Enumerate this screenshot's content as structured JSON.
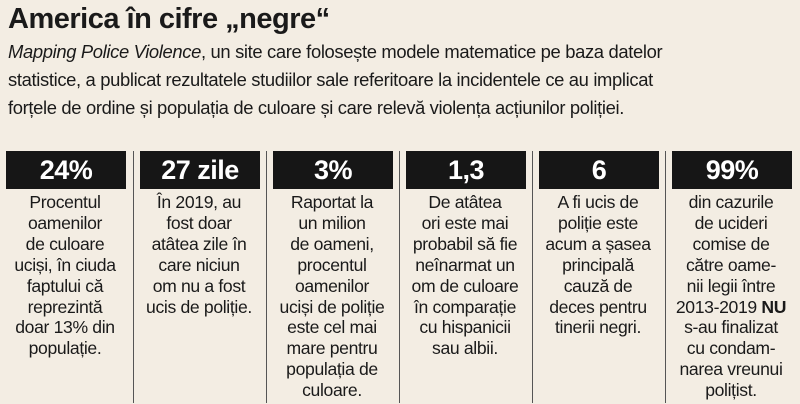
{
  "title": "America în cifre „negre“",
  "intro": {
    "source": "Mapping Police Violence",
    "line1_rest": ", un site care folosește modele matematice pe baza datelor",
    "line2": "statistice, a publicat rezultatele studiilor sale referitoare la incidentele ce au implicat",
    "line3": "forțele de ordine și populația de culoare și care relevă violența acțiunilor poliției."
  },
  "stats": [
    {
      "value": "24%",
      "lines": [
        "Procentul",
        "oamenilor",
        "de culoare",
        "uciși, în ciuda",
        "faptului că",
        "reprezintă",
        "doar 13% din",
        "populație."
      ]
    },
    {
      "value": "27 zile",
      "lines": [
        "În 2019, au",
        "fost doar",
        "atâtea zile în",
        "care niciun",
        "om nu a fost",
        "ucis de poliție."
      ]
    },
    {
      "value": "3%",
      "lines": [
        "Raportat la",
        "un milion",
        "de oameni,",
        "procentul",
        "oamenilor",
        "uciși de poliție",
        "este cel mai",
        "mare pentru",
        "populația de",
        "culoare."
      ]
    },
    {
      "value": "1,3",
      "lines": [
        "De atâtea",
        "ori este mai",
        "probabil să fie",
        "neînarmat un",
        "om de culoare",
        "în comparație",
        "cu hispanicii",
        "sau albii."
      ]
    },
    {
      "value": "6",
      "lines": [
        "A fi ucis de",
        "poliție este",
        "acum a șasea",
        "principală",
        "cauză de",
        "deces pentru",
        "tinerii negri."
      ]
    },
    {
      "value": "99%",
      "lines": [
        "din cazurile",
        "de ucideri",
        "comise de",
        "către oame-",
        "nii legii între",
        "2013-2019",
        "s-au finalizat",
        "cu condam-",
        "narea vreunui",
        "polițist."
      ],
      "emphasis": "NU"
    }
  ]
}
